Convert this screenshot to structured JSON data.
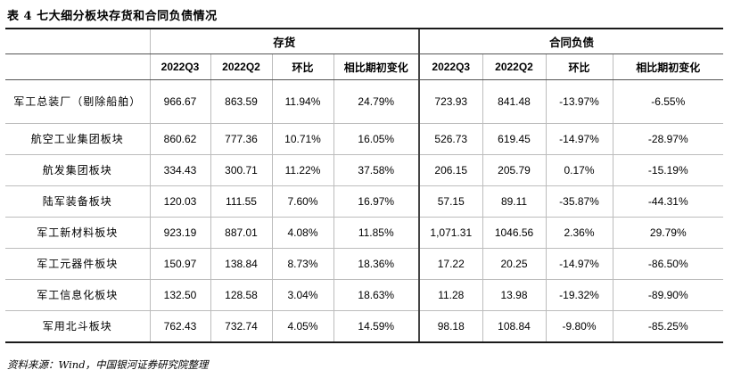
{
  "title": "表 4 七大细分板块存货和合同负债情况",
  "groups": {
    "inventory": "存货",
    "contract_liabilities": "合同负债"
  },
  "columns": {
    "q3": "2022Q3",
    "q2": "2022Q2",
    "qoq": "环比",
    "ytd": "相比期初变化",
    "q3b": "2022Q3",
    "q2b": "2022Q2",
    "qoqb": "环比",
    "ytdb": "相比期初变化"
  },
  "rows": [
    {
      "name": "军工总装厂（剔除船舶）",
      "inv_q3": "966.67",
      "inv_q2": "863.59",
      "inv_qoq": "11.94%",
      "inv_ytd": "24.79%",
      "cl_q3": "723.93",
      "cl_q2": "841.48",
      "cl_qoq": "-13.97%",
      "cl_ytd": "-6.55%"
    },
    {
      "name": "航空工业集团板块",
      "inv_q3": "860.62",
      "inv_q2": "777.36",
      "inv_qoq": "10.71%",
      "inv_ytd": "16.05%",
      "cl_q3": "526.73",
      "cl_q2": "619.45",
      "cl_qoq": "-14.97%",
      "cl_ytd": "-28.97%"
    },
    {
      "name": "航发集团板块",
      "inv_q3": "334.43",
      "inv_q2": "300.71",
      "inv_qoq": "11.22%",
      "inv_ytd": "37.58%",
      "cl_q3": "206.15",
      "cl_q2": "205.79",
      "cl_qoq": "0.17%",
      "cl_ytd": "-15.19%"
    },
    {
      "name": "陆军装备板块",
      "inv_q3": "120.03",
      "inv_q2": "111.55",
      "inv_qoq": "7.60%",
      "inv_ytd": "16.97%",
      "cl_q3": "57.15",
      "cl_q2": "89.11",
      "cl_qoq": "-35.87%",
      "cl_ytd": "-44.31%"
    },
    {
      "name": "军工新材料板块",
      "inv_q3": "923.19",
      "inv_q2": "887.01",
      "inv_qoq": "4.08%",
      "inv_ytd": "11.85%",
      "cl_q3": "1,071.31",
      "cl_q2": "1046.56",
      "cl_qoq": "2.36%",
      "cl_ytd": "29.79%"
    },
    {
      "name": "军工元器件板块",
      "inv_q3": "150.97",
      "inv_q2": "138.84",
      "inv_qoq": "8.73%",
      "inv_ytd": "18.36%",
      "cl_q3": "17.22",
      "cl_q2": "20.25",
      "cl_qoq": "-14.97%",
      "cl_ytd": "-86.50%"
    },
    {
      "name": "军工信息化板块",
      "inv_q3": "132.50",
      "inv_q2": "128.58",
      "inv_qoq": "3.04%",
      "inv_ytd": "18.63%",
      "cl_q3": "11.28",
      "cl_q2": "13.98",
      "cl_qoq": "-19.32%",
      "cl_ytd": "-89.90%"
    },
    {
      "name": "军用北斗板块",
      "inv_q3": "762.43",
      "inv_q2": "732.74",
      "inv_qoq": "4.05%",
      "inv_ytd": "14.59%",
      "cl_q3": "98.18",
      "cl_q2": "108.84",
      "cl_qoq": "-9.80%",
      "cl_ytd": "-85.25%"
    }
  ],
  "source": "资料来源：Wind，中国银河证券研究院整理"
}
